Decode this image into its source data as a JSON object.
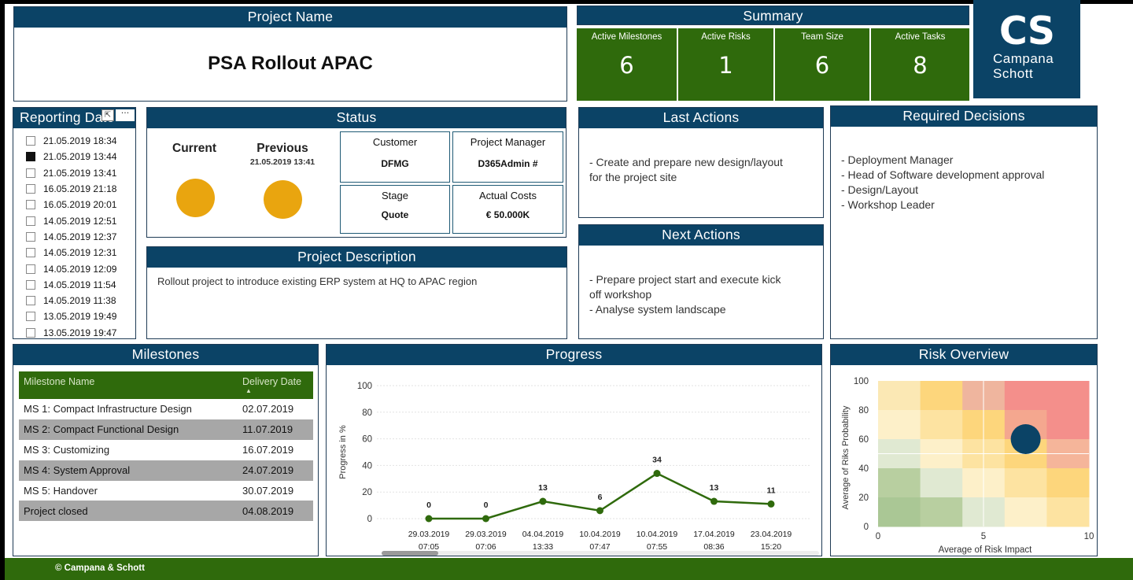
{
  "project_name": {
    "header": "Project Name",
    "value": "PSA Rollout APAC"
  },
  "summary": {
    "header": "Summary",
    "tiles": [
      {
        "label": "Active Milestones",
        "value": "6"
      },
      {
        "label": "Active Risks",
        "value": "1"
      },
      {
        "label": "Team Size",
        "value": "6"
      },
      {
        "label": "Active Tasks",
        "value": "8"
      }
    ]
  },
  "logo": {
    "mono": "CS",
    "line1": "Campana",
    "line2": "Schott"
  },
  "reporting_date": {
    "header": "Reporting Date",
    "items": [
      {
        "label": "21.05.2019 18:34",
        "checked": false
      },
      {
        "label": "21.05.2019 13:44",
        "checked": true
      },
      {
        "label": "21.05.2019 13:41",
        "checked": false
      },
      {
        "label": "16.05.2019 21:18",
        "checked": false
      },
      {
        "label": "16.05.2019 20:01",
        "checked": false
      },
      {
        "label": "14.05.2019 12:51",
        "checked": false
      },
      {
        "label": "14.05.2019 12:37",
        "checked": false
      },
      {
        "label": "14.05.2019 12:31",
        "checked": false
      },
      {
        "label": "14.05.2019 12:09",
        "checked": false
      },
      {
        "label": "14.05.2019 11:54",
        "checked": false
      },
      {
        "label": "14.05.2019 11:38",
        "checked": false
      },
      {
        "label": "13.05.2019 19:49",
        "checked": false
      },
      {
        "label": "13.05.2019 19:47",
        "checked": false
      }
    ]
  },
  "status": {
    "header": "Status",
    "current_label": "Current",
    "previous_label": "Previous",
    "previous_date": "21.05.2019 13:41",
    "dot_color": "#e9a50f",
    "customer": {
      "label": "Customer",
      "value": "DFMG"
    },
    "project_manager": {
      "label": "Project Manager",
      "value": "D365Admin #"
    },
    "stage": {
      "label": "Stage",
      "value": "Quote"
    },
    "actual_costs": {
      "label": "Actual Costs",
      "value": "€ 50.000K"
    }
  },
  "project_description": {
    "header": "Project Description",
    "text": "Rollout project to introduce existing ERP system at HQ to APAC region"
  },
  "last_actions": {
    "header": "Last Actions",
    "lines": [
      "- Create and prepare new design/layout",
      "for the project site"
    ]
  },
  "next_actions": {
    "header": "Next Actions",
    "lines": [
      "- Prepare project start and execute kick",
      "off workshop",
      "- Analyse system landscape"
    ]
  },
  "required_decisions": {
    "header": "Required Decisions",
    "lines": [
      "- Deployment Manager",
      "- Head of Software development approval",
      "- Design/Layout",
      "- Workshop Leader"
    ]
  },
  "milestones": {
    "header": "Milestones",
    "col_name": "Milestone Name",
    "col_date": "Delivery Date",
    "rows": [
      {
        "name": "MS 1: Compact Infrastructure Design",
        "date": "02.07.2019"
      },
      {
        "name": "MS 2: Compact Functional Design",
        "date": "11.07.2019"
      },
      {
        "name": "MS 3: Customizing",
        "date": "16.07.2019"
      },
      {
        "name": "MS 4: System Approval",
        "date": "24.07.2019"
      },
      {
        "name": "MS 5: Handover",
        "date": "30.07.2019"
      },
      {
        "name": "Project closed",
        "date": "04.08.2019"
      }
    ]
  },
  "progress": {
    "header": "Progress"
  },
  "risk_overview": {
    "header": "Risk Overview"
  },
  "footer": {
    "text": "© Campana & Schott"
  },
  "colors": {
    "brand_blue": "#0b4366",
    "brand_green": "#2f6a0c",
    "status_amber": "#e9a50f",
    "risk_dot": "#0b4366"
  },
  "chart_data": [
    {
      "type": "line",
      "ylabel": "Progress in %",
      "ylim": [
        0,
        100
      ],
      "yticks": [
        0,
        20,
        40,
        60,
        80,
        100
      ],
      "categories": [
        [
          "29.03.2019",
          "07:05"
        ],
        [
          "29.03.2019",
          "07:06"
        ],
        [
          "04.04.2019",
          "13:33"
        ],
        [
          "10.04.2019",
          "07:47"
        ],
        [
          "10.04.2019",
          "07:55"
        ],
        [
          "17.04.2019",
          "08:36"
        ],
        [
          "23.04.2019",
          "15:20"
        ]
      ],
      "values": [
        0,
        0,
        13,
        6,
        34,
        13,
        11
      ],
      "color": "#2f6a0c",
      "grid": true
    },
    {
      "type": "scatter",
      "xlabel": "Average of Risk Impact",
      "ylabel": "Average of Riks Probability",
      "xlim": [
        0,
        10
      ],
      "ylim": [
        0,
        100
      ],
      "xticks": [
        0,
        5,
        10
      ],
      "yticks": [
        0,
        20,
        40,
        60,
        80,
        100
      ],
      "points": [
        {
          "x": 7,
          "y": 60
        }
      ],
      "background": "heatmap"
    }
  ]
}
